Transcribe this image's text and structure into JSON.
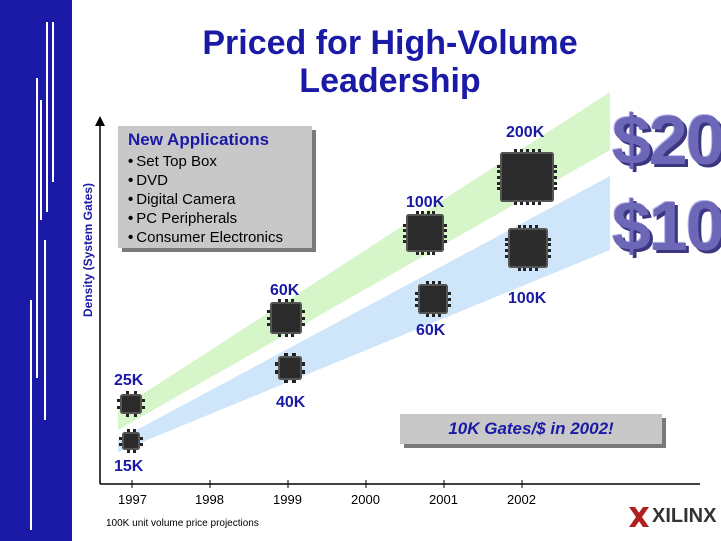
{
  "title_line1": "Priced for High-Volume",
  "title_line2": "Leadership",
  "y_axis_label": "Density (System Gates)",
  "box": {
    "title": "New Applications",
    "items": [
      "Set Top Box",
      "DVD",
      "Digital Camera",
      "PC Peripherals",
      "Consumer Electronics"
    ]
  },
  "upper_band": {
    "labels": [
      "25K",
      "60K",
      "100K",
      "200K"
    ],
    "price": "$20"
  },
  "lower_band": {
    "labels": [
      "15K",
      "40K",
      "60K",
      "100K"
    ],
    "price": "$10"
  },
  "callout": "10K Gates/$ in 2002!",
  "x_axis": [
    "1997",
    "1998",
    "1999",
    "2000",
    "2001",
    "2002"
  ],
  "footnote": "100K unit volume price projections",
  "logo": "XILINX",
  "colors": {
    "brand_blue": "#1a1aa6",
    "green_band": "#d6f5c8",
    "blue_band": "#cfe6fa"
  }
}
